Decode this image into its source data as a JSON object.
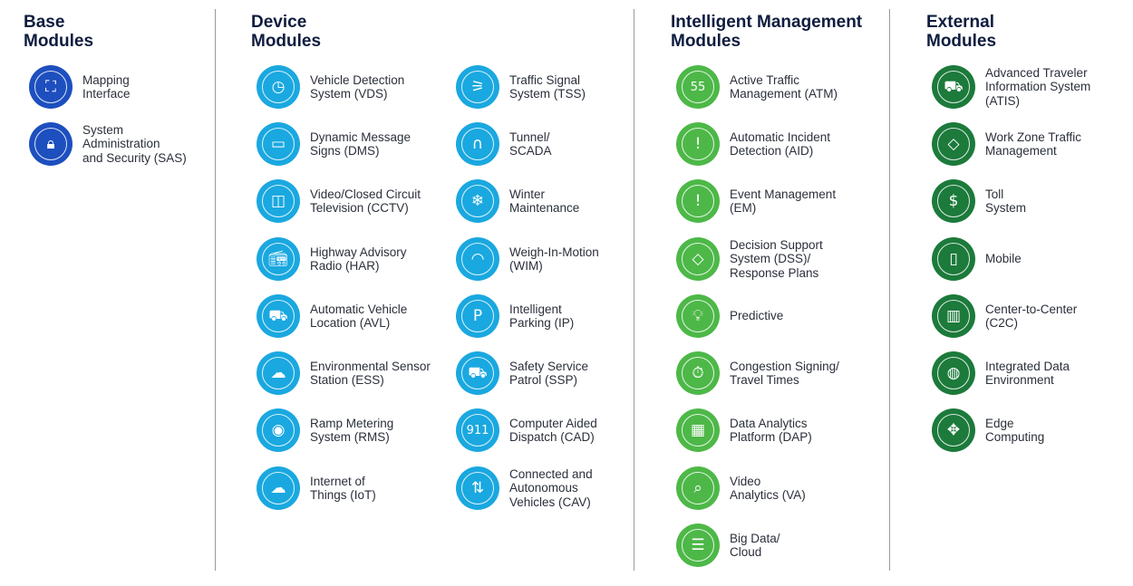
{
  "colors": {
    "base": "#1d4fbf",
    "device": "#1aa8e0",
    "intelligent": "#4db848",
    "external": "#1c7a3b"
  },
  "sections": [
    {
      "key": "base",
      "title_line1": "Base",
      "title_line2": "Modules",
      "columns": [
        [
          {
            "label": "Mapping\nInterface",
            "icon": "map-icon",
            "glyph": "⛶"
          },
          {
            "label": "System\nAdministration\nand Security (SAS)",
            "icon": "lock-icon",
            "glyph": "🔒︎"
          }
        ]
      ]
    },
    {
      "key": "device",
      "title_line1": "Device",
      "title_line2": "Modules",
      "columns": [
        [
          {
            "label": "Vehicle Detection\nSystem (VDS)",
            "icon": "vehicle-timer-icon",
            "glyph": "◷"
          },
          {
            "label": "Dynamic Message\nSigns (DMS)",
            "icon": "message-sign-icon",
            "glyph": "▭"
          },
          {
            "label": "Video/Closed Circuit\nTelevision (CCTV)",
            "icon": "camera-icon",
            "glyph": "◫"
          },
          {
            "label": "Highway Advisory\nRadio (HAR)",
            "icon": "radio-icon",
            "glyph": "📻︎"
          },
          {
            "label": "Automatic Vehicle\nLocation (AVL)",
            "icon": "car-location-icon",
            "glyph": "⛟"
          },
          {
            "label": "Environmental Sensor\nStation (ESS)",
            "icon": "weather-icon",
            "glyph": "☁"
          },
          {
            "label": "Ramp Metering\nSystem (RMS)",
            "icon": "ramp-signal-icon",
            "glyph": "◉"
          },
          {
            "label": "Internet of\nThings (IoT)",
            "icon": "cloud-network-icon",
            "glyph": "☁"
          }
        ],
        [
          {
            "label": "Traffic Signal\nSystem (TSS)",
            "icon": "traffic-light-icon",
            "glyph": "⚞"
          },
          {
            "label": "Tunnel/\nSCADA",
            "icon": "tunnel-icon",
            "glyph": "∩"
          },
          {
            "label": "Winter\nMaintenance",
            "icon": "snow-plow-icon",
            "glyph": "❄"
          },
          {
            "label": "Weigh-In-Motion\n(WIM)",
            "icon": "scale-icon",
            "glyph": "◠"
          },
          {
            "label": "Intelligent\nParking (IP)",
            "icon": "parking-icon",
            "glyph": "P"
          },
          {
            "label": "Safety Service\nPatrol (SSP)",
            "icon": "patrol-truck-icon",
            "glyph": "⛟"
          },
          {
            "label": "Computer Aided\nDispatch (CAD)",
            "icon": "dispatch-911-icon",
            "glyph": "911"
          },
          {
            "label": "Connected and\nAutonomous\nVehicles (CAV)",
            "icon": "connected-car-icon",
            "glyph": "⇅"
          }
        ]
      ]
    },
    {
      "key": "intelligent",
      "title_line1": "Intelligent Management",
      "title_line2": "Modules",
      "columns": [
        [
          {
            "label": "Active Traffic\nManagement (ATM)",
            "icon": "speed-limit-icon",
            "glyph": "55"
          },
          {
            "label": "Automatic Incident\nDetection (AID)",
            "icon": "alert-waves-icon",
            "glyph": "!"
          },
          {
            "label": "Event Management\n(EM)",
            "icon": "exclamation-icon",
            "glyph": "!"
          },
          {
            "label": "Decision Support\nSystem (DSS)/\nResponse Plans",
            "icon": "decision-sign-icon",
            "glyph": "◇"
          },
          {
            "label": "Predictive",
            "icon": "lightbulb-icon",
            "glyph": "💡︎"
          },
          {
            "label": "Congestion Signing/\nTravel Times",
            "icon": "stopwatch-icon",
            "glyph": "⏱"
          },
          {
            "label": "Data Analytics\nPlatform (DAP)",
            "icon": "bar-chart-icon",
            "glyph": "▦"
          },
          {
            "label": "Video\nAnalytics (VA)",
            "icon": "video-search-icon",
            "glyph": "⌕"
          },
          {
            "label": "Big Data/\nCloud",
            "icon": "server-icon",
            "glyph": "☰"
          }
        ]
      ]
    },
    {
      "key": "external",
      "title_line1": "External",
      "title_line2": "Modules",
      "columns": [
        [
          {
            "label": "Advanced Traveler\nInformation System\n(ATIS)",
            "icon": "car-info-icon",
            "glyph": "⛟"
          },
          {
            "label": "Work Zone Traffic\nManagement",
            "icon": "work-zone-icon",
            "glyph": "◇"
          },
          {
            "label": "Toll\nSystem",
            "icon": "toll-coins-icon",
            "glyph": "$"
          },
          {
            "label": "Mobile",
            "icon": "mobile-icon",
            "glyph": "▯"
          },
          {
            "label": "Center-to-Center\n(C2C)",
            "icon": "building-icon",
            "glyph": "▥"
          },
          {
            "label": "Integrated Data\nEnvironment",
            "icon": "globe-network-icon",
            "glyph": "◍"
          },
          {
            "label": "Edge\nComputing",
            "icon": "edge-chip-icon",
            "glyph": "✥"
          }
        ]
      ]
    }
  ]
}
